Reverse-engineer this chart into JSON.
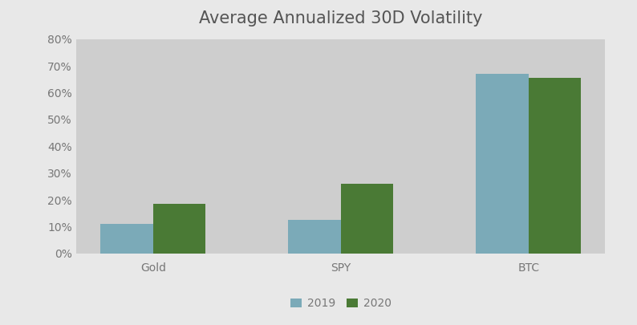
{
  "title": "Average Annualized 30D Volatility",
  "categories": [
    "Gold",
    "SPY",
    "BTC"
  ],
  "series": {
    "2019": [
      0.11,
      0.125,
      0.67
    ],
    "2020": [
      0.185,
      0.26,
      0.655
    ]
  },
  "bar_colors": {
    "2019": "#7BAAB8",
    "2020": "#4A7A35"
  },
  "ylim": [
    0,
    0.8
  ],
  "yticks": [
    0,
    0.1,
    0.2,
    0.3,
    0.4,
    0.5,
    0.6,
    0.7,
    0.8
  ],
  "plot_background_color": "#CECECE",
  "outer_background": "#E8E8E8",
  "title_fontsize": 15,
  "tick_fontsize": 10,
  "legend_fontsize": 10,
  "bar_width": 0.28,
  "legend_labels": [
    "2019",
    "2020"
  ]
}
